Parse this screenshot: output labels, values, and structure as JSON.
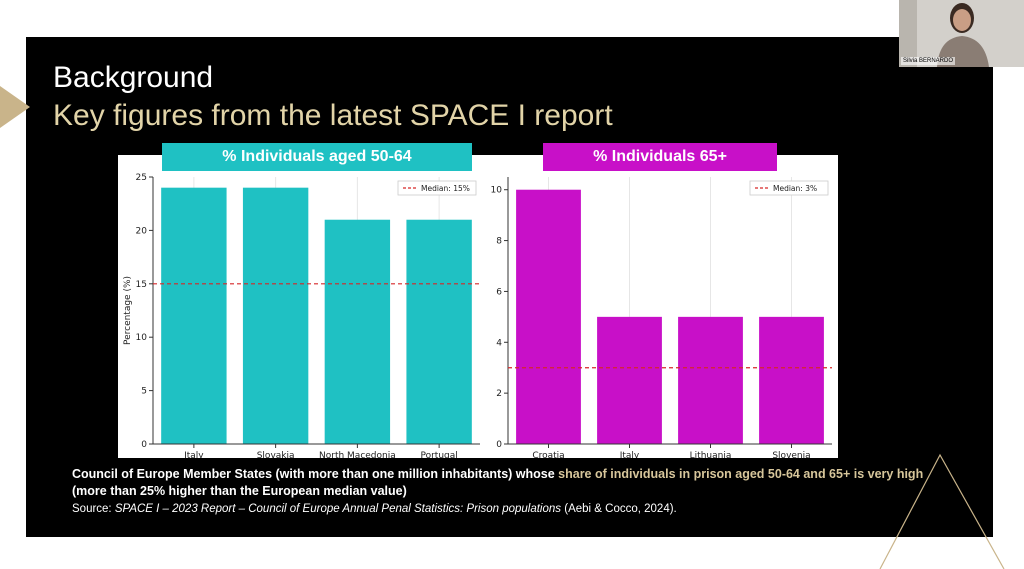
{
  "slide": {
    "title_line1": "Background",
    "title_line2": "Key figures from the latest SPACE I report",
    "accent_color": "#c9b48a"
  },
  "caption": {
    "part1": "Council of Europe Member States (with more than one million inhabitants) whose ",
    "highlight": "share of individuals in prison aged 50-64 and 65+ is very high",
    "part2": " (more than 25% higher than the European median value)"
  },
  "source": {
    "prefix": "Source: ",
    "italic": "SPACE I – 2023 Report – Council of Europe Annual Penal Statistics: Prison populations",
    "suffix": " (Aebi & Cocco, 2024)."
  },
  "webcam": {
    "name": "Silvia BERNARDO"
  },
  "chart_data": [
    {
      "type": "bar",
      "title": "% Individuals aged 50-64",
      "categories": [
        "Italy",
        "Slovakia",
        "North Macedonia",
        "Portugal"
      ],
      "values": [
        24,
        24,
        21,
        21
      ],
      "ylabel": "Percentage (%)",
      "xlabel": "",
      "ylim": [
        0,
        25
      ],
      "yticks": [
        0,
        5,
        10,
        15,
        20,
        25
      ],
      "median": 15,
      "legend": "Median: 15%",
      "legend_position": "top-right",
      "bar_color": "#1fc1c3",
      "median_color": "#d62728",
      "grid": true
    },
    {
      "type": "bar",
      "title": "% Individuals 65+",
      "categories": [
        "Croatia",
        "Italy",
        "Lithuania",
        "Slovenia"
      ],
      "values": [
        10,
        5,
        5,
        5
      ],
      "ylabel": "",
      "xlabel": "",
      "ylim": [
        0,
        10.5
      ],
      "yticks": [
        0,
        2,
        4,
        6,
        8,
        10
      ],
      "median": 3,
      "legend": "Median: 3%",
      "legend_position": "top-right",
      "bar_color": "#c810c8",
      "median_color": "#d62728",
      "grid": true
    }
  ]
}
